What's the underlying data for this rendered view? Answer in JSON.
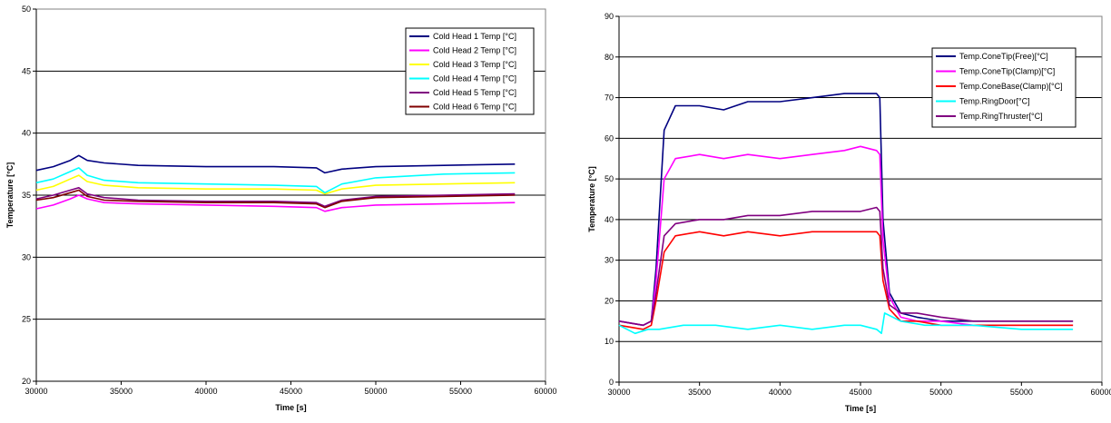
{
  "chart_data": [
    {
      "type": "line",
      "xlabel": "Time [s]",
      "ylabel": "Temperature [°C]",
      "xlim": [
        30000,
        60000
      ],
      "ylim": [
        20,
        50
      ],
      "xticks": [
        "30000",
        "35000",
        "40000",
        "45000",
        "50000",
        "55000",
        "60000"
      ],
      "yticks": [
        "20",
        "25",
        "30",
        "35",
        "40",
        "45",
        "50"
      ],
      "grid": "horizontal",
      "legend_position": "top-right",
      "series": [
        {
          "name": "Cold Head 1 Temp [°C]",
          "color": "#000080",
          "x": [
            30000,
            31000,
            32000,
            32500,
            33000,
            34000,
            36000,
            40000,
            44000,
            46500,
            47000,
            48000,
            50000,
            54000,
            58200
          ],
          "y": [
            37.0,
            37.3,
            37.8,
            38.2,
            37.8,
            37.6,
            37.4,
            37.3,
            37.3,
            37.2,
            36.8,
            37.1,
            37.3,
            37.4,
            37.5
          ]
        },
        {
          "name": "Cold Head 2 Temp [°C]",
          "color": "#ff00ff",
          "x": [
            30000,
            31000,
            32000,
            32500,
            33000,
            34000,
            36000,
            40000,
            44000,
            46500,
            47000,
            48000,
            50000,
            54000,
            58200
          ],
          "y": [
            33.9,
            34.2,
            34.7,
            35.0,
            34.7,
            34.4,
            34.3,
            34.2,
            34.1,
            34.0,
            33.7,
            34.0,
            34.2,
            34.3,
            34.4
          ]
        },
        {
          "name": "Cold Head 3 Temp [°C]",
          "color": "#ffff00",
          "x": [
            30000,
            31000,
            32000,
            32500,
            33000,
            34000,
            36000,
            40000,
            44000,
            46500,
            47000,
            48000,
            50000,
            54000,
            58200
          ],
          "y": [
            35.4,
            35.7,
            36.3,
            36.6,
            36.1,
            35.8,
            35.6,
            35.5,
            35.5,
            35.4,
            35.1,
            35.5,
            35.8,
            35.9,
            36.0
          ]
        },
        {
          "name": "Cold Head 4 Temp [°C]",
          "color": "#00ffff",
          "x": [
            30000,
            31000,
            32000,
            32500,
            33000,
            34000,
            36000,
            40000,
            44000,
            46500,
            47000,
            48000,
            50000,
            54000,
            58200
          ],
          "y": [
            36.0,
            36.3,
            36.9,
            37.2,
            36.6,
            36.2,
            36.0,
            35.9,
            35.8,
            35.7,
            35.2,
            35.9,
            36.4,
            36.7,
            36.8
          ]
        },
        {
          "name": "Cold Head 5 Temp [°C]",
          "color": "#800080",
          "x": [
            30000,
            31000,
            32000,
            32500,
            33000,
            34000,
            36000,
            40000,
            44000,
            46500,
            47000,
            48000,
            50000,
            54000,
            58200
          ],
          "y": [
            34.7,
            35.0,
            35.4,
            35.6,
            35.1,
            34.8,
            34.6,
            34.5,
            34.5,
            34.4,
            34.1,
            34.6,
            34.9,
            35.0,
            35.1
          ]
        },
        {
          "name": "Cold Head 6 Temp [°C]",
          "color": "#800000",
          "x": [
            30000,
            31000,
            32000,
            32500,
            33000,
            34000,
            36000,
            40000,
            44000,
            46500,
            47000,
            48000,
            50000,
            54000,
            58200
          ],
          "y": [
            34.6,
            34.8,
            35.2,
            35.4,
            34.9,
            34.6,
            34.5,
            34.4,
            34.4,
            34.3,
            34.0,
            34.5,
            34.8,
            34.9,
            35.0
          ]
        }
      ]
    },
    {
      "type": "line",
      "xlabel": "Time [s]",
      "ylabel": "Temperature [°C]",
      "xlim": [
        30000,
        60000
      ],
      "ylim": [
        0,
        90
      ],
      "xticks": [
        "30000",
        "35000",
        "40000",
        "45000",
        "50000",
        "55000",
        "60000"
      ],
      "yticks": [
        "0",
        "10",
        "20",
        "30",
        "40",
        "50",
        "60",
        "70",
        "80",
        "90"
      ],
      "grid": "horizontal",
      "legend_position": "top-right",
      "series": [
        {
          "name": "Temp.ConeTip(Free)[°C]",
          "color": "#000080",
          "x": [
            30000,
            31500,
            32000,
            32300,
            32800,
            33500,
            35000,
            36500,
            38000,
            40000,
            42000,
            44000,
            45000,
            46000,
            46200,
            46400,
            46800,
            47500,
            48500,
            50000,
            52000,
            55000,
            58200
          ],
          "y": [
            15,
            14,
            15,
            28,
            62,
            68,
            68,
            67,
            69,
            69,
            70,
            71,
            71,
            71,
            70,
            40,
            22,
            17,
            16,
            15,
            15,
            15,
            15
          ]
        },
        {
          "name": "Temp.ConeTip(Clamp)[°C]",
          "color": "#ff00ff",
          "x": [
            30000,
            31500,
            32000,
            32300,
            32800,
            33500,
            35000,
            36500,
            38000,
            40000,
            42000,
            44000,
            45000,
            46000,
            46200,
            46400,
            46800,
            47500,
            48500,
            50000,
            52000,
            55000,
            58200
          ],
          "y": [
            15,
            14,
            15,
            25,
            50,
            55,
            56,
            55,
            56,
            55,
            56,
            57,
            58,
            57,
            56,
            35,
            21,
            16,
            15,
            15,
            14,
            14,
            14
          ]
        },
        {
          "name": "Temp.ConeBase(Clamp)[°C]",
          "color": "#ff0000",
          "x": [
            30000,
            31500,
            32000,
            32300,
            32800,
            33500,
            35000,
            36500,
            38000,
            40000,
            42000,
            44000,
            45000,
            46000,
            46200,
            46400,
            46800,
            47500,
            48500,
            50000,
            52000,
            55000,
            58200
          ],
          "y": [
            14,
            13,
            14,
            20,
            32,
            36,
            37,
            36,
            37,
            36,
            37,
            37,
            37,
            37,
            36,
            25,
            18,
            15,
            15,
            14,
            14,
            14,
            14
          ]
        },
        {
          "name": "Temp.RingDoor[°C]",
          "color": "#00ffff",
          "x": [
            30000,
            31000,
            31800,
            32500,
            34000,
            36000,
            38000,
            40000,
            42000,
            44000,
            45000,
            46000,
            46300,
            46500,
            47500,
            49000,
            51000,
            52000,
            55000,
            58200
          ],
          "y": [
            14,
            12,
            13,
            13,
            14,
            14,
            13,
            14,
            13,
            14,
            14,
            13,
            12,
            17,
            15,
            14,
            14,
            14,
            13,
            13
          ]
        },
        {
          "name": "Temp.RingThruster[°C]",
          "color": "#800080",
          "x": [
            30000,
            31500,
            32000,
            32300,
            32800,
            33500,
            35000,
            36500,
            38000,
            40000,
            42000,
            44000,
            45000,
            46000,
            46200,
            46400,
            46800,
            47500,
            48500,
            50000,
            52000,
            55000,
            58200
          ],
          "y": [
            15,
            14,
            15,
            22,
            36,
            39,
            40,
            40,
            41,
            41,
            42,
            42,
            42,
            43,
            42,
            28,
            19,
            17,
            17,
            16,
            15,
            15,
            15
          ]
        }
      ]
    }
  ]
}
